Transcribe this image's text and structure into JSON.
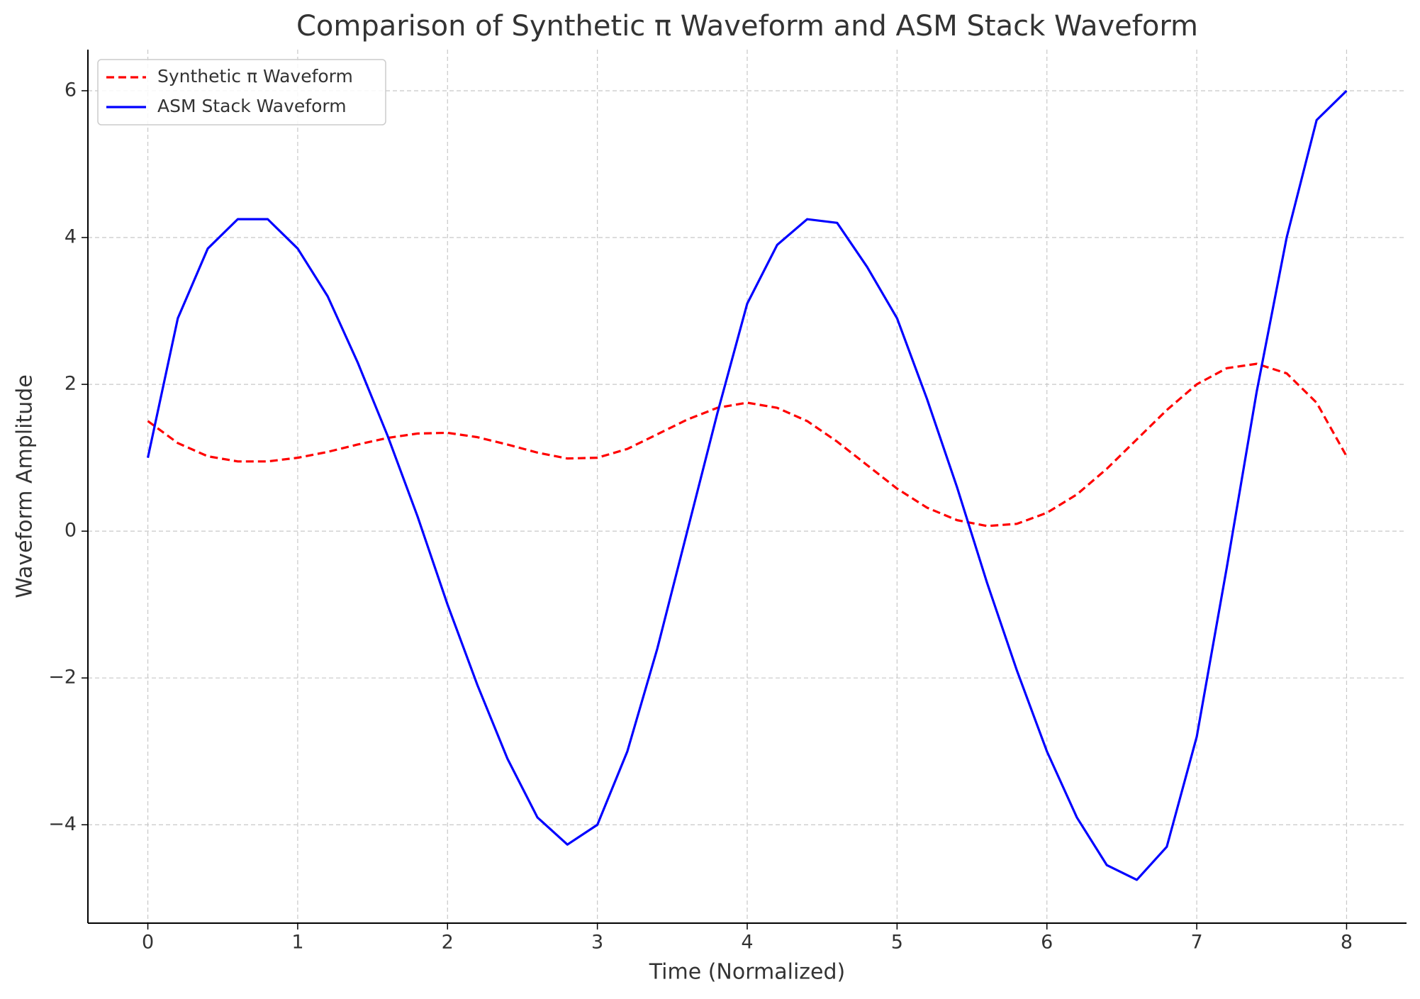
{
  "chart_data": {
    "type": "line",
    "title": "Comparison of Synthetic π Waveform and ASM Stack Waveform",
    "xlabel": "Time (Normalized)",
    "ylabel": "Waveform Amplitude",
    "x": [
      0,
      0.2,
      0.4,
      0.6,
      0.8,
      1.0,
      1.2,
      1.4,
      1.6,
      1.8,
      2.0,
      2.2,
      2.4,
      2.6,
      2.8,
      3.0,
      3.2,
      3.4,
      3.6,
      3.8,
      4.0,
      4.2,
      4.4,
      4.6,
      4.8,
      5.0,
      5.2,
      5.4,
      5.6,
      5.8,
      6.0,
      6.2,
      6.4,
      6.6,
      6.8,
      7.0,
      7.2,
      7.4,
      7.6,
      7.8,
      8.0
    ],
    "series": [
      {
        "name": "Synthetic π Waveform",
        "color": "#ff0000",
        "dash": true,
        "values": [
          1.5,
          1.2,
          1.02,
          0.95,
          0.95,
          1.0,
          1.08,
          1.18,
          1.27,
          1.33,
          1.34,
          1.28,
          1.18,
          1.07,
          0.99,
          1.0,
          1.12,
          1.32,
          1.52,
          1.68,
          1.75,
          1.68,
          1.5,
          1.22,
          0.9,
          0.58,
          0.32,
          0.15,
          0.07,
          0.1,
          0.25,
          0.5,
          0.85,
          1.25,
          1.65,
          2.0,
          2.22,
          2.28,
          2.15,
          1.75,
          1.02
        ]
      },
      {
        "name": "ASM Stack Waveform",
        "color": "#0000ff",
        "dash": false,
        "values": [
          1.0,
          2.9,
          3.85,
          4.25,
          4.25,
          3.85,
          3.2,
          2.3,
          1.3,
          0.2,
          -1.0,
          -2.1,
          -3.1,
          -3.9,
          -4.27,
          -4.0,
          -3.0,
          -1.6,
          0.0,
          1.6,
          3.1,
          3.9,
          4.25,
          4.2,
          3.6,
          2.9,
          1.8,
          0.6,
          -0.7,
          -1.9,
          -3.0,
          -3.9,
          -4.55,
          -4.75,
          -4.3,
          -2.8,
          -0.5,
          1.9,
          4.0,
          5.6,
          6.0
        ]
      }
    ],
    "xlim": [
      -0.4,
      8.4
    ],
    "ylim": [
      -5.34,
      6.56
    ],
    "xticks": [
      0,
      1,
      2,
      3,
      4,
      5,
      6,
      7,
      8
    ],
    "yticks": [
      {
        "value": -4,
        "label": "−4"
      },
      {
        "value": -2,
        "label": "−2"
      },
      0,
      2,
      4,
      6
    ],
    "grid": true,
    "legend": "upper-left"
  }
}
